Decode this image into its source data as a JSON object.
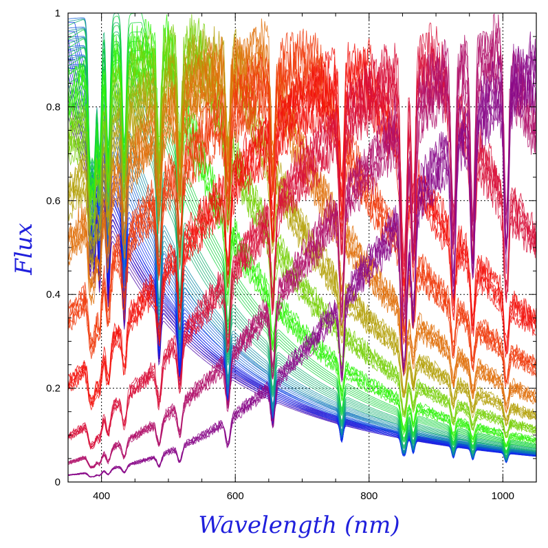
{
  "chart_data": {
    "type": "line",
    "title": "",
    "xlabel": "Wavelength (nm)",
    "ylabel": "Flux",
    "xlim": [
      350,
      1050
    ],
    "ylim": [
      0,
      1
    ],
    "x_major_ticks": [
      400,
      600,
      800,
      1000
    ],
    "x_tick_labels": [
      "400",
      "600",
      "800",
      "1000"
    ],
    "y_major_ticks": [
      0,
      0.2,
      0.4,
      0.6,
      0.8,
      1
    ],
    "y_tick_labels": [
      "0",
      "0.2",
      "0.4",
      "0.6",
      "0.8",
      "1"
    ],
    "grid": "dotted at major ticks",
    "legend": "none",
    "description_of_series": "family of normalized stellar spectra, color-coded from blue/purple (hot) through green to red (cool)",
    "absorption_lines_nm": [
      383,
      389,
      397,
      410,
      434,
      486,
      517,
      589,
      656,
      759,
      850,
      854,
      866,
      926,
      955,
      1005
    ],
    "series": [
      {
        "peak_nm": 330,
        "amplitude": 1.0,
        "slope": 0.2,
        "depth": 0.55,
        "color": "#4a00a6"
      },
      {
        "peak_nm": 345,
        "amplitude": 0.98,
        "slope": 0.3,
        "depth": 0.55,
        "color": "#1d10d8"
      },
      {
        "peak_nm": 360,
        "amplitude": 0.98,
        "slope": 0.4,
        "depth": 0.6,
        "color": "#0a2cf0"
      },
      {
        "peak_nm": 380,
        "amplitude": 0.99,
        "slope": 0.5,
        "depth": 0.6,
        "color": "#0a5cd4"
      },
      {
        "peak_nm": 400,
        "amplitude": 0.99,
        "slope": 0.6,
        "depth": 0.6,
        "color": "#0b8aa6"
      },
      {
        "peak_nm": 430,
        "amplitude": 1.0,
        "slope": 0.75,
        "depth": 0.55,
        "color": "#12b070"
      },
      {
        "peak_nm": 460,
        "amplitude": 1.0,
        "slope": 0.85,
        "depth": 0.5,
        "color": "#10d43a"
      },
      {
        "peak_nm": 500,
        "amplitude": 1.0,
        "slope": 0.95,
        "depth": 0.45,
        "color": "#2ff20a"
      },
      {
        "peak_nm": 550,
        "amplitude": 1.0,
        "slope": 1.05,
        "depth": 0.42,
        "color": "#78d00a"
      },
      {
        "peak_nm": 600,
        "amplitude": 0.98,
        "slope": 1.1,
        "depth": 0.4,
        "color": "#b4a10a"
      },
      {
        "peak_nm": 650,
        "amplitude": 0.99,
        "slope": 1.15,
        "depth": 0.42,
        "color": "#e0700a"
      },
      {
        "peak_nm": 720,
        "amplitude": 0.97,
        "slope": 1.2,
        "depth": 0.45,
        "color": "#f03a0a"
      },
      {
        "peak_nm": 800,
        "amplitude": 0.95,
        "slope": 1.25,
        "depth": 0.5,
        "color": "#f2100a"
      },
      {
        "peak_nm": 900,
        "amplitude": 0.98,
        "slope": 1.3,
        "depth": 0.6,
        "color": "#d8103a"
      },
      {
        "peak_nm": 1000,
        "amplitude": 1.0,
        "slope": 1.3,
        "depth": 0.7,
        "color": "#b0106a"
      },
      {
        "peak_nm": 1100,
        "amplitude": 0.99,
        "slope": 1.3,
        "depth": 0.75,
        "color": "#8a0a8a"
      }
    ]
  }
}
